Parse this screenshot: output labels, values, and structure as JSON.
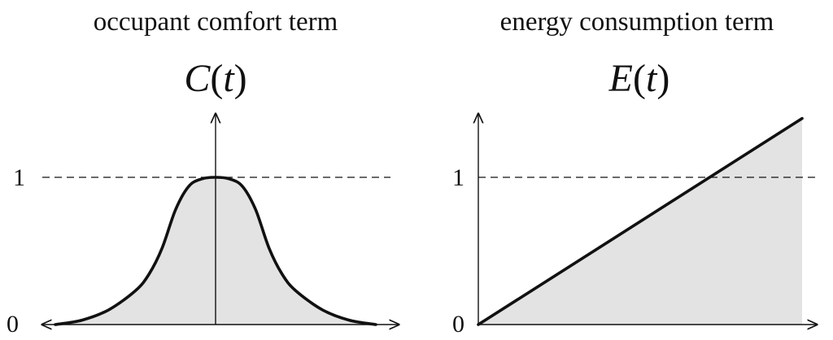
{
  "chart_data": [
    {
      "type": "line",
      "title": "occupant comfort term",
      "function_label": "C(t)",
      "xlabel": "",
      "ylabel": "",
      "yticks": [
        "0",
        "1"
      ],
      "xlim": [
        -3,
        3
      ],
      "ylim": [
        0,
        1.45
      ],
      "fill_under": true,
      "fill_color": "#e3e3e3",
      "line_color": "#111111",
      "reference_line": {
        "y": 1,
        "style": "dashed"
      },
      "x": [
        -3.0,
        -2.5,
        -2.0,
        -1.5,
        -1.25,
        -1.0,
        -0.75,
        -0.5,
        -0.25,
        0.0,
        0.25,
        0.5,
        0.75,
        1.0,
        1.25,
        1.5,
        2.0,
        2.5,
        3.0
      ],
      "values": [
        0.0,
        0.03,
        0.1,
        0.23,
        0.34,
        0.52,
        0.78,
        0.94,
        0.99,
        1.0,
        0.99,
        0.94,
        0.78,
        0.52,
        0.34,
        0.23,
        0.1,
        0.03,
        0.0
      ]
    },
    {
      "type": "line",
      "title": "energy consumption term",
      "function_label": "E(t)",
      "xlabel": "",
      "ylabel": "",
      "yticks": [
        "0",
        "1"
      ],
      "xlim": [
        0,
        1.4
      ],
      "ylim": [
        0,
        1.45
      ],
      "fill_under": true,
      "fill_color": "#e3e3e3",
      "line_color": "#111111",
      "reference_line": {
        "y": 1,
        "style": "dashed"
      },
      "x": [
        0,
        1.4
      ],
      "values": [
        0,
        1.4
      ]
    }
  ]
}
